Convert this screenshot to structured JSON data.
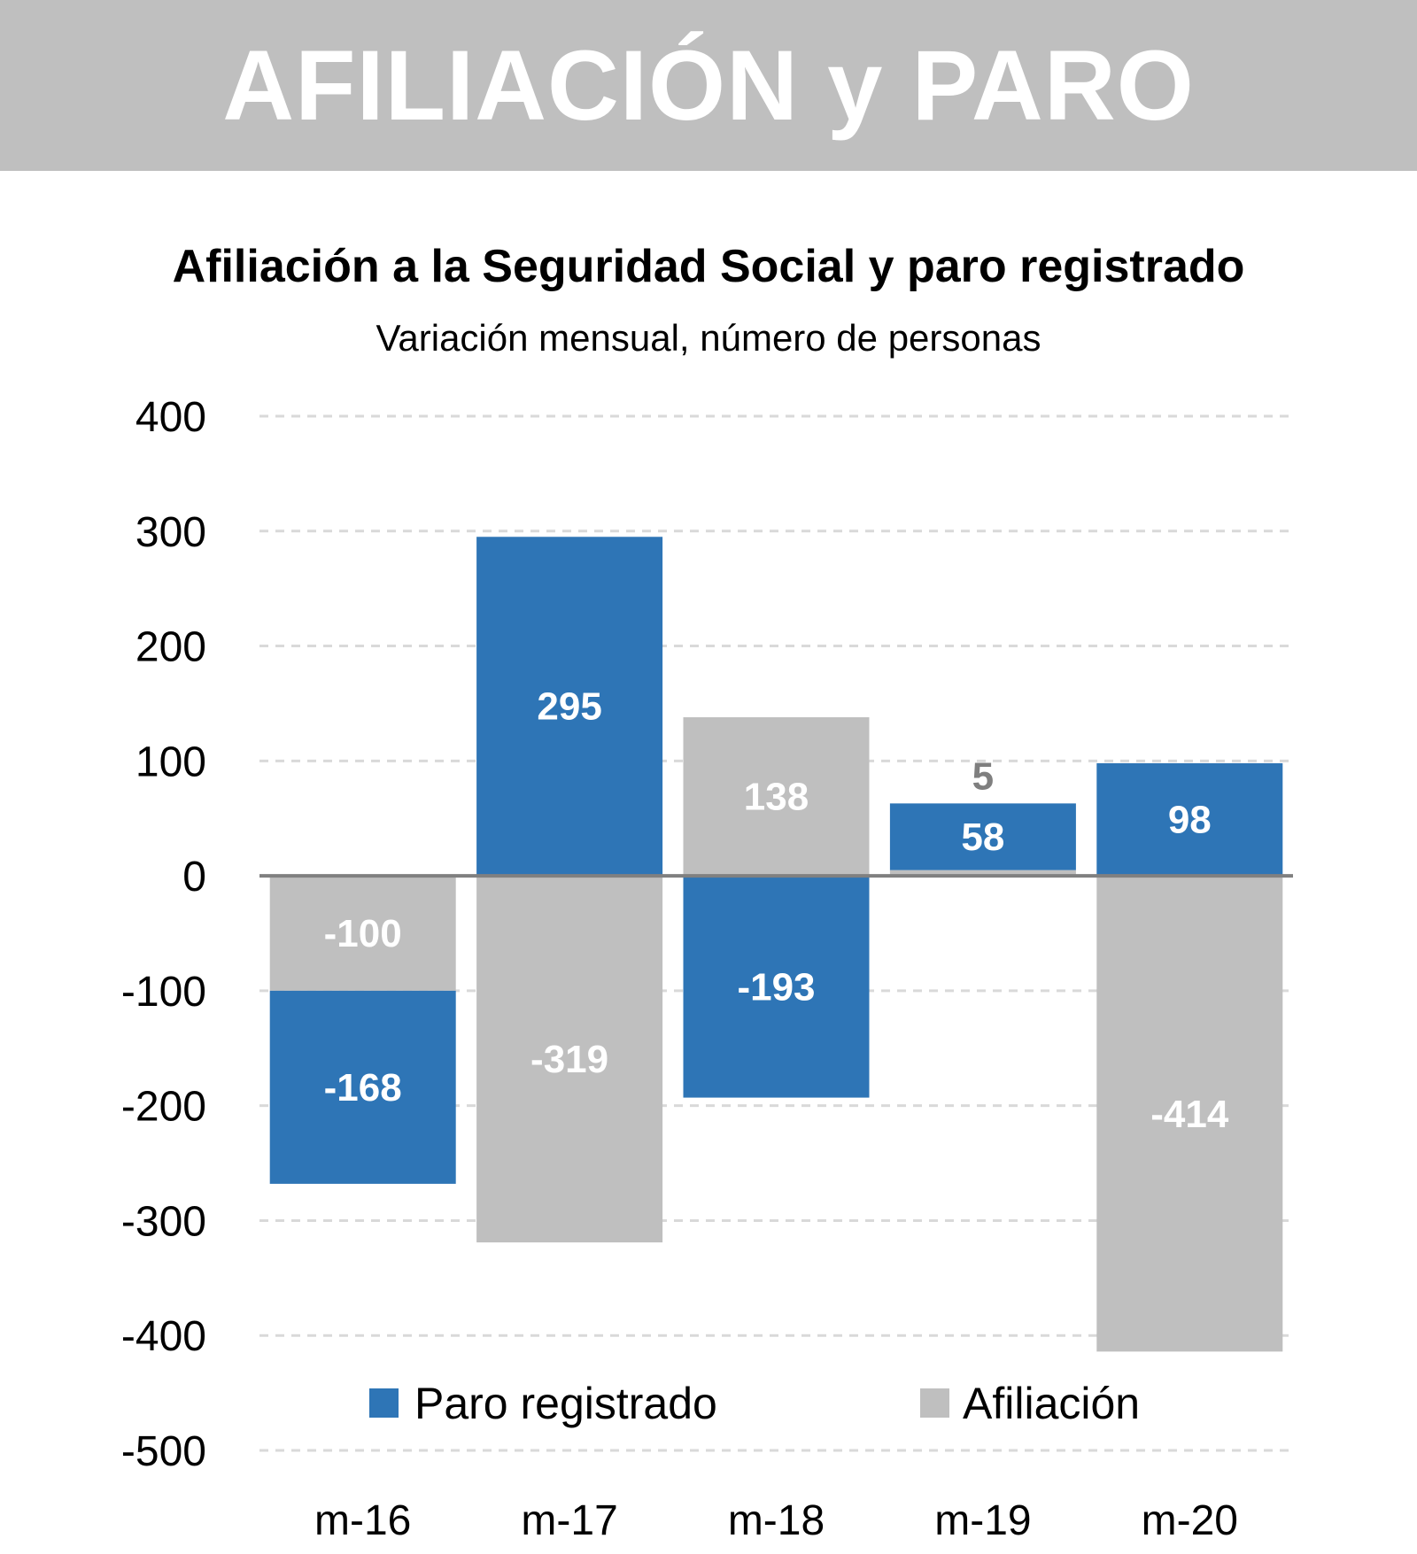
{
  "header": {
    "title": "AFILIACIÓN y PARO"
  },
  "chart_data": {
    "type": "bar",
    "stacked": true,
    "title": "Afiliación a la Seguridad Social y paro registrado",
    "subtitle": "Variación mensual, número de personas",
    "categories": [
      "m-16",
      "m-17",
      "m-18",
      "m-19",
      "m-20"
    ],
    "series": [
      {
        "name": "Afiliación",
        "color": "#BFBFBF",
        "label_color": "#FFFFFF",
        "values": [
          -100,
          -319,
          138,
          5,
          -414
        ],
        "labels": [
          "-100",
          "-319",
          "138",
          "5",
          "-414"
        ]
      },
      {
        "name": "Paro registrado",
        "color": "#2E75B6",
        "label_color": "#FFFFFF",
        "values": [
          -168,
          295,
          -193,
          58,
          98
        ],
        "labels": [
          "-168",
          "295",
          "-193",
          "58",
          "98"
        ]
      }
    ],
    "legend_order": [
      "Paro registrado",
      "Afiliación"
    ],
    "yticks": [
      "400",
      "300",
      "200",
      "100",
      "0",
      "-100",
      "-200",
      "-300",
      "-400",
      "-500"
    ],
    "ylim": [
      -500,
      400
    ],
    "grid": true,
    "grid_style": "dashed",
    "legend_position": "bottom-inside",
    "small_label_color": "#7F7F7F"
  }
}
